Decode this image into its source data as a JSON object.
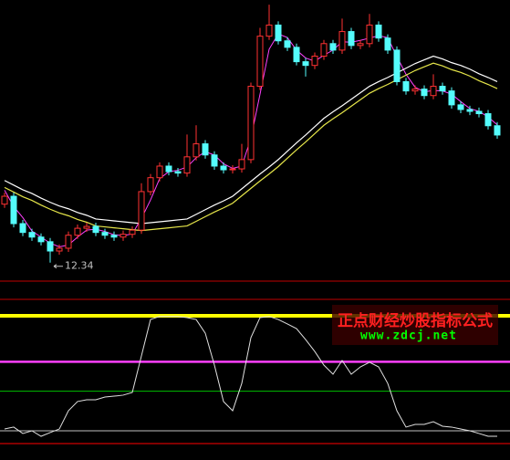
{
  "chart_data": {
    "type": "candlestick",
    "ylim": [
      12,
      18
    ],
    "up_color": "#ff3232",
    "down_color": "#54fcfc",
    "open": [
      13.6,
      13.77,
      13.18,
      12.99,
      12.89,
      12.79,
      12.59,
      12.65,
      12.93,
      13.08,
      13.12,
      12.99,
      12.93,
      12.89,
      12.95,
      13.04,
      13.87,
      14.17,
      14.42,
      14.3,
      14.27,
      14.62,
      14.9,
      14.66,
      14.42,
      14.34,
      14.36,
      14.56,
      16.14,
      17.22,
      17.46,
      17.12,
      16.98,
      16.67,
      16.59,
      16.79,
      17.06,
      16.92,
      17.32,
      17.02,
      17.06,
      17.46,
      17.18,
      16.92,
      16.24,
      16.04,
      16.08,
      15.94,
      16.14,
      16.04,
      15.74,
      15.64,
      15.6,
      15.55,
      15.29
    ],
    "high": [
      13.85,
      13.85,
      13.26,
      13.07,
      12.97,
      12.87,
      12.73,
      13.01,
      13.16,
      13.2,
      13.2,
      13.07,
      13.01,
      13.03,
      13.12,
      14.05,
      14.25,
      14.5,
      14.5,
      14.38,
      15.1,
      15.3,
      14.98,
      14.74,
      14.5,
      14.44,
      14.9,
      16.22,
      17.4,
      17.9,
      17.54,
      17.2,
      17.06,
      16.75,
      16.87,
      17.14,
      17.14,
      17.6,
      17.4,
      17.14,
      17.7,
      17.54,
      17.26,
      17.0,
      16.32,
      16.16,
      16.16,
      16.4,
      16.22,
      16.12,
      15.82,
      15.72,
      15.68,
      15.63,
      15.37
    ],
    "low": [
      13.52,
      13.1,
      12.91,
      12.81,
      12.71,
      12.34,
      12.51,
      12.57,
      12.85,
      13.0,
      12.91,
      12.85,
      12.81,
      12.81,
      12.87,
      12.96,
      13.79,
      14.09,
      14.22,
      14.19,
      14.19,
      14.54,
      14.58,
      14.34,
      14.26,
      14.26,
      14.28,
      14.48,
      16.06,
      17.14,
      17.04,
      16.9,
      16.59,
      16.35,
      16.51,
      16.71,
      16.84,
      16.84,
      16.94,
      16.94,
      16.98,
      17.1,
      16.84,
      16.16,
      15.96,
      15.96,
      15.86,
      15.86,
      15.96,
      15.66,
      15.56,
      15.52,
      15.47,
      15.21,
      15.01
    ],
    "close": [
      13.77,
      13.18,
      12.99,
      12.89,
      12.79,
      12.59,
      12.65,
      12.93,
      13.08,
      13.12,
      12.99,
      12.93,
      12.89,
      12.95,
      13.04,
      13.87,
      14.17,
      14.42,
      14.3,
      14.27,
      14.62,
      14.9,
      14.66,
      14.42,
      14.34,
      14.36,
      14.56,
      16.14,
      17.22,
      17.46,
      17.12,
      16.98,
      16.67,
      16.59,
      16.79,
      17.06,
      16.92,
      17.32,
      17.02,
      17.06,
      17.46,
      17.18,
      16.92,
      16.24,
      16.04,
      16.08,
      15.94,
      16.14,
      16.04,
      15.74,
      15.64,
      15.6,
      15.55,
      15.29,
      15.09
    ],
    "lines": [
      {
        "color": "#ff40ff",
        "values": [
          13.9,
          13.55,
          13.31,
          13.02,
          12.89,
          12.76,
          12.68,
          12.72,
          12.89,
          13.04,
          13.06,
          13.01,
          12.94,
          12.92,
          12.96,
          13.29,
          13.69,
          14.15,
          14.3,
          14.33,
          14.4,
          14.6,
          14.73,
          14.66,
          14.47,
          14.37,
          14.42,
          15.02,
          15.97,
          16.94,
          17.27,
          17.19,
          16.92,
          16.75,
          16.68,
          16.81,
          16.92,
          17.1,
          17.09,
          17.13,
          17.18,
          17.23,
          17.19,
          16.78,
          16.4,
          16.12,
          16.02,
          16.05,
          16.04,
          15.97,
          15.81,
          15.66,
          15.6,
          15.48,
          15.31
        ]
      },
      {
        "color": "#ffffff",
        "values": [
          14.11,
          14.01,
          13.91,
          13.83,
          13.73,
          13.64,
          13.56,
          13.5,
          13.42,
          13.36,
          13.28,
          13.26,
          13.24,
          13.22,
          13.2,
          13.18,
          13.2,
          13.22,
          13.24,
          13.26,
          13.28,
          13.38,
          13.48,
          13.58,
          13.67,
          13.77,
          13.93,
          14.09,
          14.25,
          14.4,
          14.56,
          14.74,
          14.92,
          15.09,
          15.27,
          15.45,
          15.59,
          15.72,
          15.86,
          16.0,
          16.14,
          16.24,
          16.33,
          16.43,
          16.53,
          16.63,
          16.71,
          16.79,
          16.73,
          16.65,
          16.59,
          16.51,
          16.41,
          16.33,
          16.24
        ]
      },
      {
        "color": "#e6e64a",
        "values": [
          13.96,
          13.86,
          13.76,
          13.68,
          13.58,
          13.49,
          13.41,
          13.35,
          13.27,
          13.21,
          13.13,
          13.11,
          13.09,
          13.07,
          13.05,
          13.03,
          13.05,
          13.07,
          13.09,
          13.11,
          13.13,
          13.23,
          13.33,
          13.43,
          13.52,
          13.62,
          13.78,
          13.94,
          14.1,
          14.25,
          14.41,
          14.59,
          14.77,
          14.94,
          15.12,
          15.3,
          15.44,
          15.57,
          15.71,
          15.85,
          15.99,
          16.09,
          16.18,
          16.28,
          16.38,
          16.48,
          16.56,
          16.64,
          16.58,
          16.5,
          16.44,
          16.36,
          16.26,
          16.18,
          16.09
        ]
      }
    ],
    "indicator": {
      "ylim": [
        0,
        100
      ],
      "color": "#e0e0e0",
      "values": [
        11.4,
        12.9,
        7.9,
        10.0,
        5.7,
        8.6,
        11.4,
        25.7,
        32.9,
        34.3,
        34.3,
        36.4,
        37.1,
        37.9,
        40.0,
        68.6,
        97.1,
        99.5,
        99.5,
        99.5,
        98.6,
        97.1,
        86.4,
        61.4,
        32.9,
        25.7,
        47.1,
        82.9,
        98.6,
        99.5,
        97.1,
        93.6,
        90.0,
        81.4,
        72.1,
        61.4,
        54.3,
        65.0,
        54.3,
        60.0,
        63.6,
        60.0,
        47.1,
        25.7,
        12.9,
        15.0,
        15.0,
        17.1,
        13.6,
        12.9,
        11.4,
        10.0,
        7.9,
        5.7,
        5.7
      ],
      "reference_lines": [
        {
          "value": 100,
          "color": "#ffff00"
        },
        {
          "value": 64,
          "color": "#ff40ff"
        },
        {
          "value": 41,
          "color": "#00c000"
        },
        {
          "value": 10,
          "color": "#c0c0c0"
        },
        {
          "value": 0,
          "color": "#ff0000"
        }
      ]
    }
  },
  "watermark": {
    "title": "正点财经炒股指标公式",
    "url": "www.zdcj.net"
  }
}
